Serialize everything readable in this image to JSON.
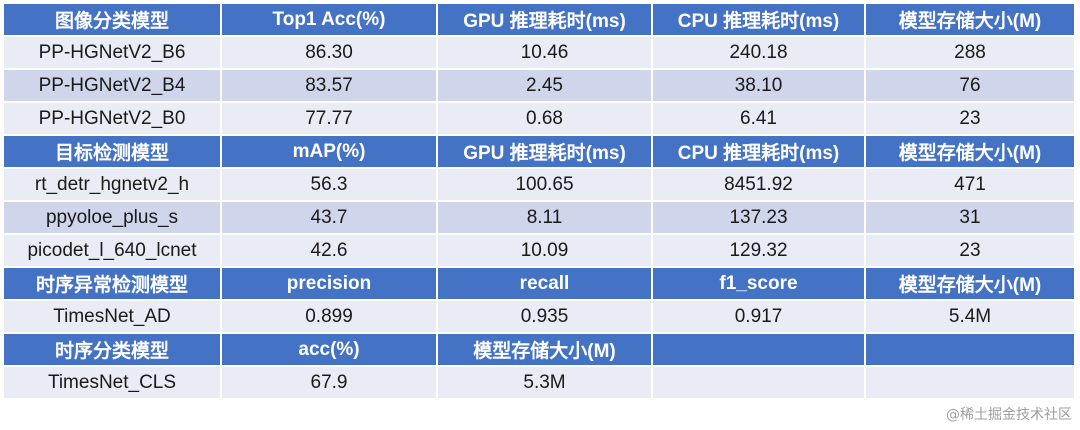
{
  "sections": [
    {
      "header": [
        "图像分类模型",
        "Top1 Acc(%)",
        "GPU 推理耗时(ms)",
        "CPU 推理耗时(ms)",
        "模型存储大小(M)"
      ],
      "rows": [
        [
          "PP-HGNetV2_B6",
          "86.30",
          "10.46",
          "240.18",
          "288"
        ],
        [
          "PP-HGNetV2_B4",
          "83.57",
          "2.45",
          "38.10",
          "76"
        ],
        [
          "PP-HGNetV2_B0",
          "77.77",
          "0.68",
          "6.41",
          "23"
        ]
      ]
    },
    {
      "header": [
        "目标检测模型",
        "mAP(%)",
        "GPU 推理耗时(ms)",
        "CPU 推理耗时(ms)",
        "模型存储大小(M)"
      ],
      "rows": [
        [
          "rt_detr_hgnetv2_h",
          "56.3",
          "100.65",
          "8451.92",
          "471"
        ],
        [
          "ppyoloe_plus_s",
          "43.7",
          "8.11",
          "137.23",
          "31"
        ],
        [
          "picodet_l_640_lcnet",
          "42.6",
          "10.09",
          "129.32",
          "23"
        ]
      ]
    },
    {
      "header": [
        "时序异常检测模型",
        "precision",
        "recall",
        "f1_score",
        "模型存储大小(M)"
      ],
      "rows": [
        [
          "TimesNet_AD",
          "0.899",
          "0.935",
          "0.917",
          "5.4M"
        ]
      ]
    },
    {
      "header": [
        "时序分类模型",
        "acc(%)",
        "模型存储大小(M)",
        "",
        ""
      ],
      "rows": [
        [
          "TimesNet_CLS",
          "67.9",
          "5.3M",
          "",
          ""
        ]
      ]
    }
  ],
  "watermark": "@稀土掘金技术社区"
}
